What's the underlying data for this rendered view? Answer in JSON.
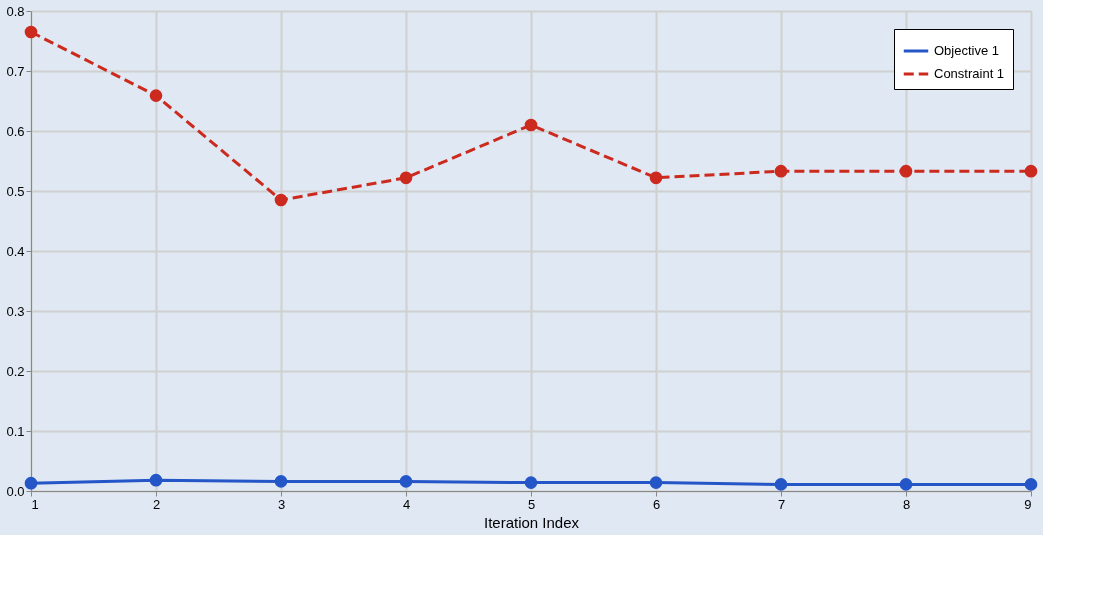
{
  "chart_data": {
    "type": "line",
    "xlabel": "Iteration Index",
    "x": [
      1,
      2,
      3,
      4,
      5,
      6,
      7,
      8,
      9
    ],
    "series": [
      {
        "name": "Objective 1",
        "color": "#2456c8",
        "line_style": "solid",
        "values": [
          0.013,
          0.018,
          0.016,
          0.016,
          0.014,
          0.014,
          0.011,
          0.011,
          0.011
        ]
      },
      {
        "name": "Constraint 1",
        "color": "#cc2a1e",
        "line_style": "dashed",
        "values": [
          0.765,
          0.659,
          0.485,
          0.522,
          0.61,
          0.522,
          0.533,
          0.533,
          0.533
        ]
      }
    ],
    "xlim": [
      1,
      9
    ],
    "xticks": [
      1,
      2,
      3,
      4,
      5,
      6,
      7,
      8,
      9
    ],
    "ylim": [
      0,
      0.8
    ],
    "yticks": [
      {
        "value": 0,
        "label": "0.0"
      },
      0.1,
      0.2,
      0.3,
      0.4,
      0.5,
      0.6,
      0.7,
      0.8
    ],
    "grid": true,
    "legend": "top right",
    "marker": "circle"
  }
}
